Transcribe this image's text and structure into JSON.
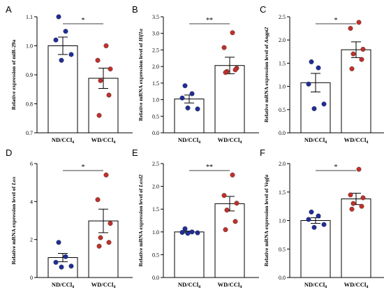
{
  "chart_data": [
    {
      "letter": "A",
      "type": "bar",
      "ylabel": "Relative expression of miR-29a",
      "categories": [
        "ND/CCl",
        "WD/CCl"
      ],
      "category_subscript": "4",
      "ylim": [
        0.7,
        1.1
      ],
      "yticks": [
        "0.7",
        "0.8",
        "0.9",
        "1.0",
        "1.1"
      ],
      "tick_values": [
        0.7,
        0.8,
        0.9,
        1.0,
        1.1
      ],
      "means": [
        1.0,
        0.888
      ],
      "sems": [
        0.03,
        0.035
      ],
      "points": [
        [
          1.1,
          1.05,
          1.02,
          0.97,
          0.95
        ],
        [
          1.0,
          0.95,
          0.92,
          0.88,
          0.83,
          0.76
        ]
      ],
      "significance": "*",
      "colors": {
        "nd": "#1f2d96",
        "wd": "#c0302a"
      }
    },
    {
      "letter": "B",
      "type": "bar",
      "ylabel_prefix": "Relative mRNA expression level of ",
      "ylabel_gene": "Hif1α",
      "categories": [
        "ND/CCl",
        "WD/CCl"
      ],
      "category_subscript": "4",
      "ylim": [
        0,
        3.5
      ],
      "yticks": [
        "0.0",
        "0.5",
        "1.0",
        "1.5",
        "2.0",
        "2.5",
        "3.0",
        "3.5"
      ],
      "tick_values": [
        0,
        0.5,
        1.0,
        1.5,
        2.0,
        2.5,
        3.0,
        3.5
      ],
      "means": [
        1.02,
        2.03
      ],
      "sems": [
        0.12,
        0.25
      ],
      "points": [
        [
          1.42,
          1.18,
          1.05,
          0.72,
          0.75
        ],
        [
          3.02,
          2.57,
          1.95,
          1.85,
          1.9,
          1.82
        ]
      ],
      "significance": "**",
      "colors": {
        "nd": "#1f2d96",
        "wd": "#c0302a"
      }
    },
    {
      "letter": "C",
      "type": "bar",
      "ylabel_prefix": "Relative mRNA expression level of ",
      "ylabel_gene": "Angpt2",
      "categories": [
        "ND/CCl",
        "WD/CCl"
      ],
      "category_subscript": "4",
      "ylim": [
        0,
        2.5
      ],
      "yticks": [
        "0.0",
        "0.5",
        "1.0",
        "1.5",
        "2.0",
        "2.5"
      ],
      "tick_values": [
        0,
        0.5,
        1.0,
        1.5,
        2.0,
        2.5
      ],
      "means": [
        1.08,
        1.79
      ],
      "sems": [
        0.2,
        0.17
      ],
      "points": [
        [
          1.53,
          1.4,
          1.05,
          0.62,
          0.52
        ],
        [
          2.38,
          2.25,
          1.8,
          1.7,
          1.58,
          1.38
        ]
      ],
      "significance": "*",
      "colors": {
        "nd": "#1f2d96",
        "wd": "#c0302a"
      }
    },
    {
      "letter": "D",
      "type": "bar",
      "ylabel_prefix": "Relative mRNA expression level of ",
      "ylabel_gene": "Lox",
      "categories": [
        "ND/CCl",
        "WD/CCl"
      ],
      "category_subscript": "4",
      "ylim": [
        0,
        6
      ],
      "yticks": [
        "0",
        "2",
        "4",
        "6"
      ],
      "tick_values": [
        0,
        2,
        4,
        6
      ],
      "means": [
        1.05,
        2.98
      ],
      "sems": [
        0.22,
        0.62
      ],
      "points": [
        [
          1.85,
          1.1,
          0.8,
          0.6,
          0.55
        ],
        [
          5.4,
          4.1,
          2.85,
          2.1,
          1.85,
          1.65
        ]
      ],
      "significance": "*",
      "colors": {
        "nd": "#1f2d96",
        "wd": "#c0302a"
      }
    },
    {
      "letter": "E",
      "type": "bar",
      "ylabel_prefix": "Relative mRNA expression level of ",
      "ylabel_gene": "Loxl2",
      "categories": [
        "ND/CCl",
        "WD/CCl"
      ],
      "category_subscript": "4",
      "ylim": [
        0,
        2.5
      ],
      "yticks": [
        "0.0",
        "0.5",
        "1.0",
        "1.5",
        "2.0",
        "2.5"
      ],
      "tick_values": [
        0,
        0.5,
        1.0,
        1.5,
        2.0,
        2.5
      ],
      "means": [
        1.0,
        1.62
      ],
      "sems": [
        0.02,
        0.16
      ],
      "points": [
        [
          1.07,
          1.0,
          0.99,
          0.98,
          0.97
        ],
        [
          2.25,
          1.8,
          1.63,
          1.48,
          1.23,
          1.05
        ]
      ],
      "significance": "**",
      "colors": {
        "nd": "#1f2d96",
        "wd": "#c0302a"
      }
    },
    {
      "letter": "F",
      "type": "bar",
      "ylabel_prefix": "Relative mRNA expression level of ",
      "ylabel_gene": "Vegfa",
      "categories": [
        "ND/CCl",
        "WD/CCl"
      ],
      "category_subscript": "4",
      "ylim": [
        0,
        2.0
      ],
      "yticks": [
        "0.0",
        "0.5",
        "1.0",
        "1.5",
        "2.0"
      ],
      "tick_values": [
        0,
        0.5,
        1.0,
        1.5,
        2.0
      ],
      "means": [
        1.0,
        1.38
      ],
      "sems": [
        0.05,
        0.1
      ],
      "points": [
        [
          1.15,
          1.08,
          1.02,
          0.93,
          0.88
        ],
        [
          1.9,
          1.45,
          1.4,
          1.3,
          1.25,
          1.2
        ]
      ],
      "significance": "*",
      "colors": {
        "nd": "#1f2d96",
        "wd": "#c0302a"
      }
    }
  ]
}
